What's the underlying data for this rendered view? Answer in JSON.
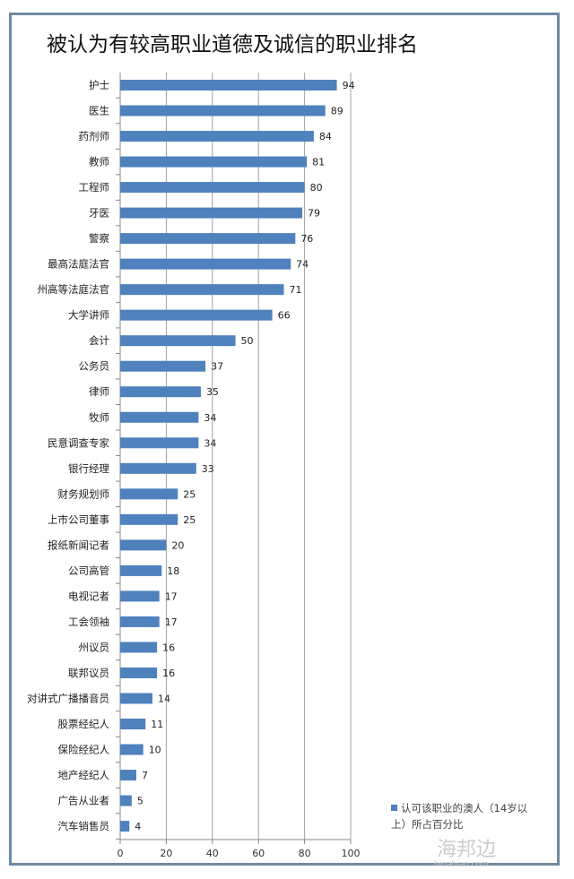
{
  "chart_data": {
    "type": "bar",
    "orientation": "horizontal",
    "title": "被认为有较高职业道德及诚信的职业排名",
    "categories": [
      "护士",
      "医生",
      "药剂师",
      "教师",
      "工程师",
      "牙医",
      "警察",
      "最高法庭法官",
      "州高等法庭法官",
      "大学讲师",
      "会计",
      "公务员",
      "律师",
      "牧师",
      "民意调查专家",
      "银行经理",
      "财务规划师",
      "上市公司董事",
      "报纸新闻记者",
      "公司高管",
      "电视记者",
      "工会领袖",
      "州议员",
      "联邦议员",
      "对讲式广播播音员",
      "股票经纪人",
      "保险经纪人",
      "地产经纪人",
      "广告从业者",
      "汽车销售员"
    ],
    "series": [
      {
        "name": "认可该职业的澳人（14岁以上）所占百分比",
        "values": [
          94,
          89,
          84,
          81,
          80,
          79,
          76,
          74,
          71,
          66,
          50,
          37,
          35,
          34,
          34,
          33,
          25,
          25,
          20,
          18,
          17,
          17,
          16,
          16,
          14,
          11,
          10,
          7,
          5,
          4
        ]
      }
    ],
    "xlim": [
      0,
      100
    ],
    "xticks": [
      "0",
      "20",
      "40",
      "60",
      "80",
      "100"
    ],
    "grid": true,
    "legend_position": "bottom-right",
    "bar_color": "#4f81bd"
  },
  "legend": {
    "line1": "认可该职业的澳人（14岁以",
    "line2": "上）所占百分比"
  },
  "watermark": {
    "text": "海邦边",
    "url": "hinabian.com"
  }
}
